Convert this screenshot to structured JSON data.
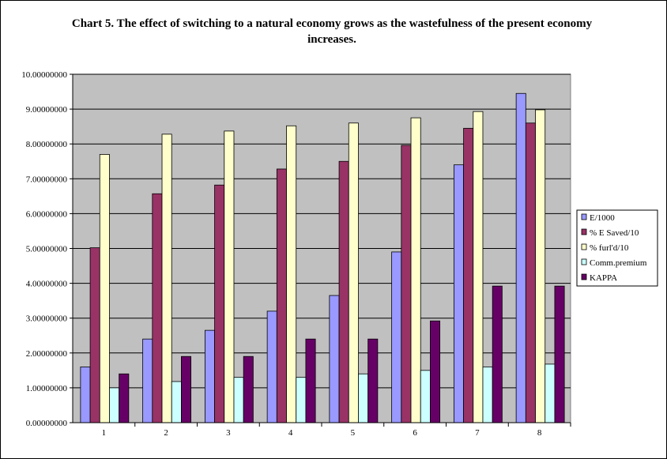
{
  "title_lines": [
    "Chart 5.  The effect of switching to a natural economy grows as the wastefulness of the present economy",
    "increases."
  ],
  "colors": {
    "plot_background": "#c0c0c0",
    "gridline": "#000000",
    "series": [
      "#9999ff",
      "#993366",
      "#ffffcc",
      "#ccffff",
      "#660066"
    ]
  },
  "chart_data": {
    "type": "bar",
    "title": "Chart 5.  The effect of switching to a natural economy grows as the wastefulness of the present economy increases.",
    "xlabel": "",
    "ylabel": "",
    "categories": [
      "1",
      "2",
      "3",
      "4",
      "5",
      "6",
      "7",
      "8"
    ],
    "ylim": [
      0,
      10
    ],
    "ytick_step": 1,
    "ytick_labels": [
      "0.00000000",
      "1.00000000",
      "2.00000000",
      "3.00000000",
      "4.00000000",
      "5.00000000",
      "6.00000000",
      "7.00000000",
      "8.00000000",
      "9.00000000",
      "10.00000000"
    ],
    "grid": true,
    "legend_position": "right",
    "series": [
      {
        "name": "E/1000",
        "values": [
          1.6,
          2.4,
          2.65,
          3.2,
          3.65,
          4.9,
          7.4,
          9.45
        ]
      },
      {
        "name": "% E Saved/10",
        "values": [
          5.02,
          6.57,
          6.82,
          7.28,
          7.5,
          7.96,
          8.45,
          8.6
        ]
      },
      {
        "name": "% furl'd/10",
        "values": [
          7.7,
          8.28,
          8.37,
          8.52,
          8.6,
          8.75,
          8.93,
          8.98
        ]
      },
      {
        "name": "Comm.premium",
        "values": [
          1.0,
          1.18,
          1.3,
          1.3,
          1.4,
          1.5,
          1.6,
          1.68
        ]
      },
      {
        "name": "KAPPA",
        "values": [
          1.4,
          1.9,
          1.9,
          2.4,
          2.4,
          2.92,
          3.92,
          3.92
        ]
      }
    ]
  }
}
